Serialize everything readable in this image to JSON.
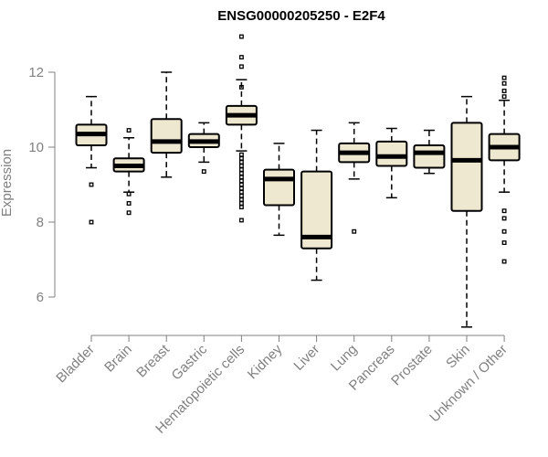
{
  "chart_data": {
    "type": "box",
    "title": "ENSG00000205250 - E2F4",
    "xlabel": "",
    "ylabel": "Expression",
    "ylim": [
      5,
      13
    ],
    "yticks": [
      6,
      8,
      10,
      12
    ],
    "box_fill": "#efe8d0",
    "line_color": "#000000",
    "axis_color": "#808080",
    "categories": [
      "Bladder",
      "Brain",
      "Breast",
      "Gastric",
      "Hematopoietic cells",
      "Kidney",
      "Liver",
      "Lung",
      "Pancreas",
      "Prostate",
      "Skin",
      "Unknown / Other"
    ],
    "boxes": [
      {
        "category": "Bladder",
        "whisker_low": 9.45,
        "q1": 10.05,
        "median": 10.35,
        "q3": 10.6,
        "whisker_high": 11.35,
        "outliers": [
          9.0,
          8.0
        ]
      },
      {
        "category": "Brain",
        "whisker_low": 8.8,
        "q1": 9.35,
        "median": 9.5,
        "q3": 9.7,
        "whisker_high": 10.25,
        "outliers": [
          10.45,
          8.75,
          8.5,
          8.25
        ]
      },
      {
        "category": "Breast",
        "whisker_low": 9.2,
        "q1": 9.85,
        "median": 10.15,
        "q3": 10.75,
        "whisker_high": 12.0,
        "outliers": []
      },
      {
        "category": "Gastric",
        "whisker_low": 9.6,
        "q1": 10.0,
        "median": 10.15,
        "q3": 10.35,
        "whisker_high": 10.65,
        "outliers": [
          9.35
        ]
      },
      {
        "category": "Hematopoietic cells",
        "whisker_low": 9.9,
        "q1": 10.6,
        "median": 10.85,
        "q3": 11.1,
        "whisker_high": 11.8,
        "outliers": [
          12.95,
          12.4,
          12.15,
          11.6,
          9.8,
          9.7,
          9.6,
          9.5,
          9.4,
          9.3,
          9.2,
          9.1,
          9.0,
          8.9,
          8.8,
          8.7,
          8.6,
          8.5,
          8.4,
          8.05
        ]
      },
      {
        "category": "Kidney",
        "whisker_low": 7.65,
        "q1": 8.45,
        "median": 9.15,
        "q3": 9.4,
        "whisker_high": 10.1,
        "outliers": []
      },
      {
        "category": "Liver",
        "whisker_low": 6.45,
        "q1": 7.3,
        "median": 7.6,
        "q3": 9.35,
        "whisker_high": 10.45,
        "outliers": []
      },
      {
        "category": "Lung",
        "whisker_low": 9.15,
        "q1": 9.6,
        "median": 9.85,
        "q3": 10.1,
        "whisker_high": 10.65,
        "outliers": [
          7.75
        ]
      },
      {
        "category": "Pancreas",
        "whisker_low": 8.65,
        "q1": 9.5,
        "median": 9.75,
        "q3": 10.15,
        "whisker_high": 10.5,
        "outliers": []
      },
      {
        "category": "Prostate",
        "whisker_low": 9.3,
        "q1": 9.45,
        "median": 9.85,
        "q3": 10.05,
        "whisker_high": 10.45,
        "outliers": []
      },
      {
        "category": "Skin",
        "whisker_low": 5.2,
        "q1": 8.3,
        "median": 9.65,
        "q3": 10.65,
        "whisker_high": 11.35,
        "outliers": []
      },
      {
        "category": "Unknown / Other",
        "whisker_low": 8.8,
        "q1": 9.65,
        "median": 10.0,
        "q3": 10.35,
        "whisker_high": 11.25,
        "outliers": [
          11.85,
          11.7,
          11.5,
          11.35,
          8.3,
          8.1,
          7.75,
          7.45,
          6.95
        ]
      }
    ]
  }
}
